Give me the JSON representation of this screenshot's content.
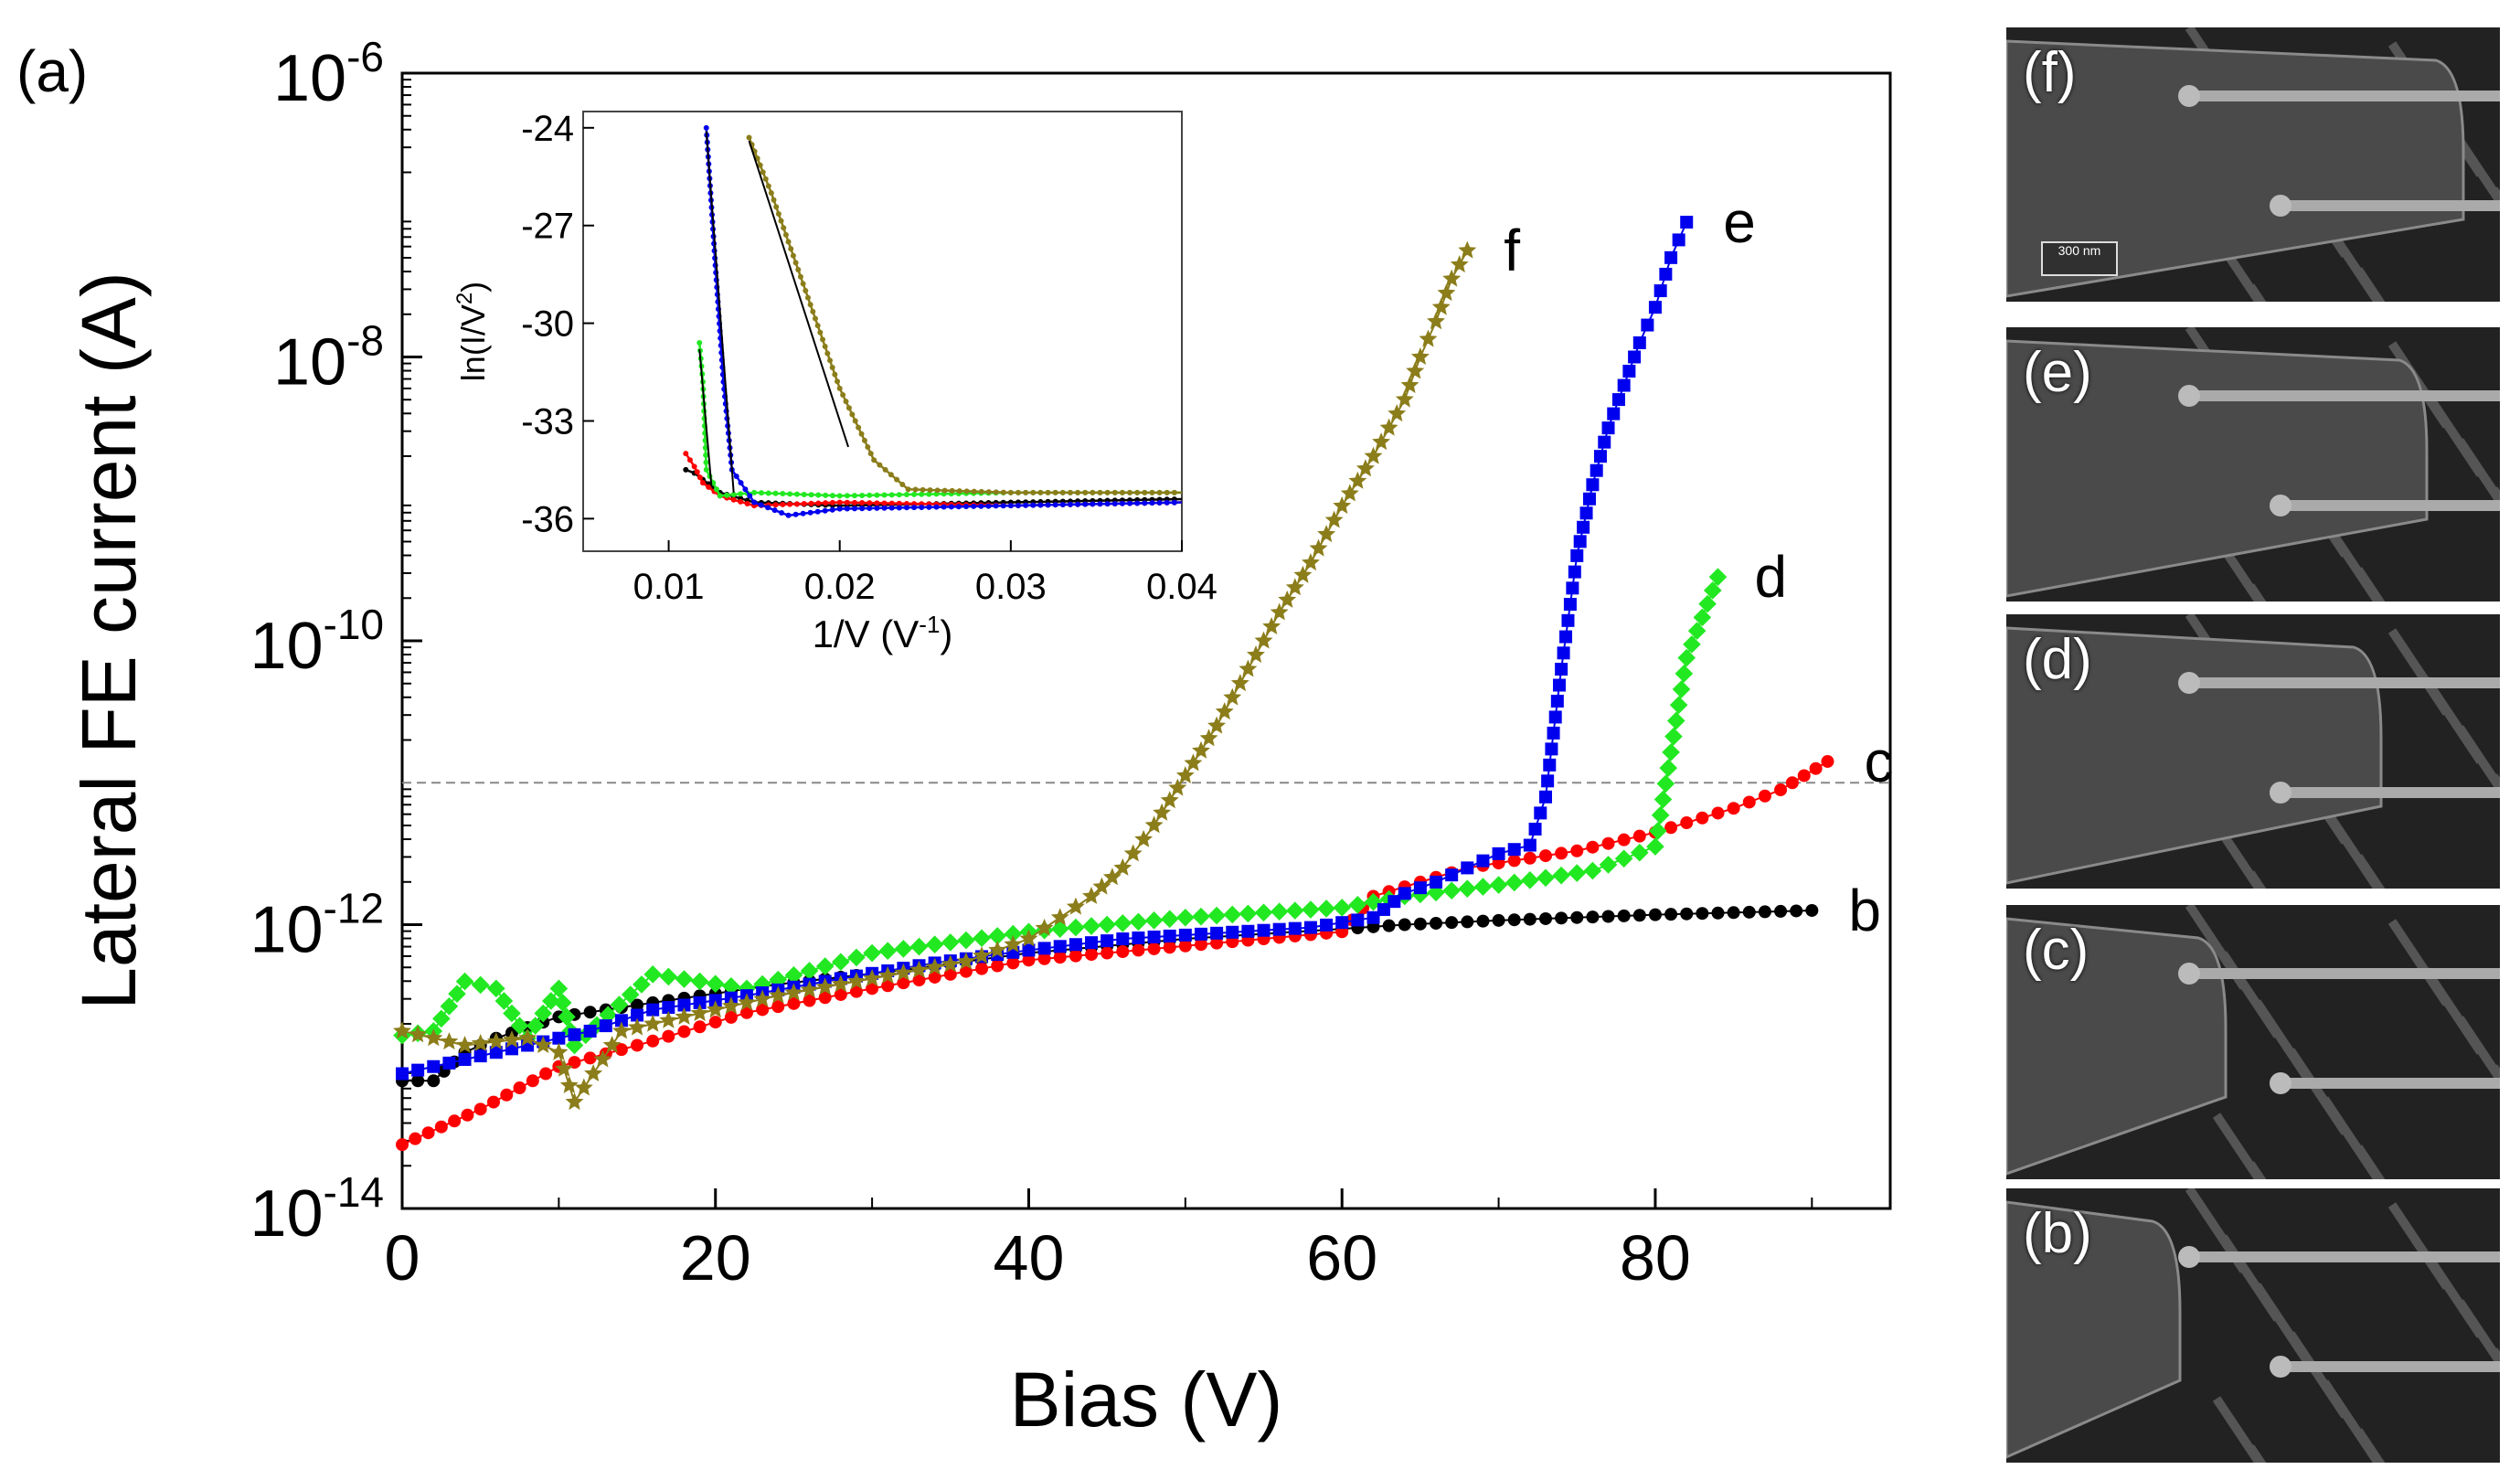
{
  "figure_label": "(a)",
  "colors": {
    "b": "#000000",
    "c": "#ff0000",
    "d": "#22e822",
    "e": "#0000ee",
    "f": "#8b7d1a",
    "threshold": "#888888"
  },
  "chart_data": [
    {
      "type": "scatter",
      "title": "",
      "xlabel": "Bias (V)",
      "ylabel": "Lateral FE current (A)",
      "xlim": [
        0,
        95
      ],
      "ylim_exp": [
        -14,
        -6
      ],
      "xticks": [
        0,
        20,
        40,
        60,
        80
      ],
      "xtick_labels": [
        "0",
        "20",
        "40",
        "60",
        "80"
      ],
      "yticks_exp": [
        -14,
        -12,
        -10,
        -8,
        -6
      ],
      "ytick_labels": [
        {
          "base": "10",
          "exp": "-14"
        },
        {
          "base": "10",
          "exp": "-12"
        },
        {
          "base": "10",
          "exp": "-10"
        },
        {
          "base": "10",
          "exp": "-8"
        },
        {
          "base": "10",
          "exp": "-6"
        }
      ],
      "threshold_log10": -11,
      "series": [
        {
          "name": "b",
          "label": "b",
          "marker": "circle",
          "points": [
            [
              0,
              -13.1
            ],
            [
              2,
              -13.1
            ],
            [
              4,
              -12.9
            ],
            [
              6,
              -12.8
            ],
            [
              10,
              -12.65
            ],
            [
              16,
              -12.55
            ],
            [
              24,
              -12.42
            ],
            [
              32,
              -12.32
            ],
            [
              40,
              -12.2
            ],
            [
              50,
              -12.1
            ],
            [
              60,
              -12.03
            ],
            [
              64,
              -12.0
            ],
            [
              70,
              -11.97
            ],
            [
              80,
              -11.93
            ],
            [
              90,
              -11.9
            ]
          ]
        },
        {
          "name": "c",
          "label": "c",
          "marker": "circle",
          "points": [
            [
              0,
              -13.55
            ],
            [
              5,
              -13.3
            ],
            [
              10,
              -13.0
            ],
            [
              16,
              -12.82
            ],
            [
              22,
              -12.62
            ],
            [
              30,
              -12.45
            ],
            [
              40,
              -12.25
            ],
            [
              50,
              -12.15
            ],
            [
              60,
              -12.05
            ],
            [
              62,
              -11.8
            ],
            [
              68,
              -11.6
            ],
            [
              75,
              -11.48
            ],
            [
              80,
              -11.35
            ],
            [
              85,
              -11.18
            ],
            [
              88,
              -11.05
            ],
            [
              91,
              -10.85
            ]
          ]
        },
        {
          "name": "d",
          "label": "d",
          "marker": "diamond",
          "points": [
            [
              0,
              -12.78
            ],
            [
              2,
              -12.75
            ],
            [
              4,
              -12.4
            ],
            [
              6,
              -12.45
            ],
            [
              8,
              -12.8
            ],
            [
              10,
              -12.45
            ],
            [
              11,
              -12.85
            ],
            [
              16,
              -12.35
            ],
            [
              22,
              -12.45
            ],
            [
              30,
              -12.2
            ],
            [
              40,
              -12.05
            ],
            [
              50,
              -11.95
            ],
            [
              60,
              -11.88
            ],
            [
              64,
              -11.8
            ],
            [
              70,
              -11.72
            ],
            [
              76,
              -11.62
            ],
            [
              80,
              -11.45
            ],
            [
              82,
              -10.12
            ],
            [
              84,
              -9.55
            ]
          ]
        },
        {
          "name": "e",
          "label": "e",
          "marker": "square",
          "points": [
            [
              0,
              -13.05
            ],
            [
              4,
              -12.95
            ],
            [
              8,
              -12.85
            ],
            [
              12,
              -12.75
            ],
            [
              16,
              -12.6
            ],
            [
              22,
              -12.5
            ],
            [
              28,
              -12.38
            ],
            [
              34,
              -12.27
            ],
            [
              40,
              -12.18
            ],
            [
              46,
              -12.1
            ],
            [
              52,
              -12.06
            ],
            [
              58,
              -12.02
            ],
            [
              62,
              -11.95
            ],
            [
              64,
              -11.78
            ],
            [
              66,
              -11.7
            ],
            [
              70,
              -11.5
            ],
            [
              72,
              -11.44
            ],
            [
              73,
              -11.1
            ],
            [
              74,
              -10.2
            ],
            [
              75,
              -9.4
            ],
            [
              76,
              -8.9
            ],
            [
              77,
              -8.5
            ],
            [
              78,
              -8.2
            ],
            [
              79,
              -7.9
            ],
            [
              80,
              -7.65
            ],
            [
              81,
              -7.3
            ],
            [
              82,
              -7.05
            ]
          ]
        },
        {
          "name": "f",
          "label": "f",
          "marker": "star",
          "points": [
            [
              0,
              -12.75
            ],
            [
              4,
              -12.85
            ],
            [
              8,
              -12.8
            ],
            [
              10,
              -12.9
            ],
            [
              11,
              -13.25
            ],
            [
              14,
              -12.75
            ],
            [
              18,
              -12.65
            ],
            [
              24,
              -12.5
            ],
            [
              30,
              -12.38
            ],
            [
              36,
              -12.26
            ],
            [
              40,
              -12.1
            ],
            [
              42,
              -11.95
            ],
            [
              44,
              -11.8
            ],
            [
              46,
              -11.6
            ],
            [
              48,
              -11.3
            ],
            [
              50,
              -10.95
            ],
            [
              52,
              -10.6
            ],
            [
              54,
              -10.2
            ],
            [
              56,
              -9.8
            ],
            [
              58,
              -9.45
            ],
            [
              60,
              -9.05
            ],
            [
              62,
              -8.7
            ],
            [
              64,
              -8.3
            ],
            [
              65,
              -8.0
            ],
            [
              66,
              -7.75
            ],
            [
              67,
              -7.45
            ],
            [
              68,
              -7.25
            ]
          ]
        }
      ]
    },
    {
      "type": "scatter",
      "title": "",
      "xlabel": "1/V (V",
      "xlabel_sup": "-1",
      "xlabel_tail": ")",
      "ylabel": "ln(I/V",
      "ylabel_sup": "2",
      "ylabel_tail": ")",
      "xlim": [
        0.005,
        0.04
      ],
      "ylim": [
        -37,
        -23.5
      ],
      "xticks": [
        0.01,
        0.02,
        0.03,
        0.04
      ],
      "xtick_labels": [
        "0.01",
        "0.02",
        "0.03",
        "0.04"
      ],
      "yticks": [
        -36,
        -33,
        -30,
        -27,
        -24
      ],
      "ytick_labels": [
        "-36",
        "-33",
        "-30",
        "-27",
        "-24"
      ],
      "series": [
        {
          "name": "b",
          "points": [
            [
              0.011,
              -34.5
            ],
            [
              0.0115,
              -34.6
            ],
            [
              0.012,
              -34.8
            ],
            [
              0.013,
              -35.2
            ],
            [
              0.015,
              -35.5
            ],
            [
              0.02,
              -35.6
            ],
            [
              0.03,
              -35.5
            ],
            [
              0.04,
              -35.4
            ]
          ]
        },
        {
          "name": "c",
          "points": [
            [
              0.011,
              -34.0
            ],
            [
              0.0115,
              -34.4
            ],
            [
              0.012,
              -34.9
            ],
            [
              0.013,
              -35.3
            ],
            [
              0.015,
              -35.6
            ],
            [
              0.02,
              -35.5
            ],
            [
              0.03,
              -35.6
            ],
            [
              0.04,
              -35.5
            ]
          ]
        },
        {
          "name": "d",
          "points": [
            [
              0.0118,
              -30.6
            ],
            [
              0.012,
              -31.8
            ],
            [
              0.0122,
              -34.5
            ],
            [
              0.013,
              -35.3
            ],
            [
              0.015,
              -35.2
            ],
            [
              0.02,
              -35.3
            ],
            [
              0.03,
              -35.2
            ],
            [
              0.04,
              -35.2
            ]
          ]
        },
        {
          "name": "e",
          "points": [
            [
              0.0122,
              -24.0
            ],
            [
              0.0127,
              -28.0
            ],
            [
              0.0132,
              -31.8
            ],
            [
              0.0137,
              -34.5
            ],
            [
              0.015,
              -35.5
            ],
            [
              0.017,
              -35.9
            ],
            [
              0.02,
              -35.7
            ],
            [
              0.03,
              -35.6
            ],
            [
              0.04,
              -35.5
            ]
          ]
        },
        {
          "name": "f",
          "points": [
            [
              0.0147,
              -24.3
            ],
            [
              0.016,
              -26.0
            ],
            [
              0.018,
              -29.0
            ],
            [
              0.02,
              -32.0
            ],
            [
              0.022,
              -34.2
            ],
            [
              0.024,
              -35.1
            ],
            [
              0.03,
              -35.2
            ],
            [
              0.04,
              -35.2
            ]
          ]
        }
      ],
      "fit_lines": [
        {
          "name": "fit-e",
          "points": [
            [
              0.0122,
              -24.1
            ],
            [
              0.0138,
              -35.2
            ]
          ]
        },
        {
          "name": "fit-f",
          "points": [
            [
              0.0147,
              -24.4
            ],
            [
              0.0205,
              -33.8
            ]
          ]
        },
        {
          "name": "fit-d",
          "points": [
            [
              0.0118,
              -30.8
            ],
            [
              0.0125,
              -35.0
            ]
          ]
        }
      ]
    }
  ],
  "sem_panels": [
    {
      "label": "(f)",
      "scale": "300 nm"
    },
    {
      "label": "(e)"
    },
    {
      "label": "(d)"
    },
    {
      "label": "(c)"
    },
    {
      "label": "(b)"
    }
  ]
}
